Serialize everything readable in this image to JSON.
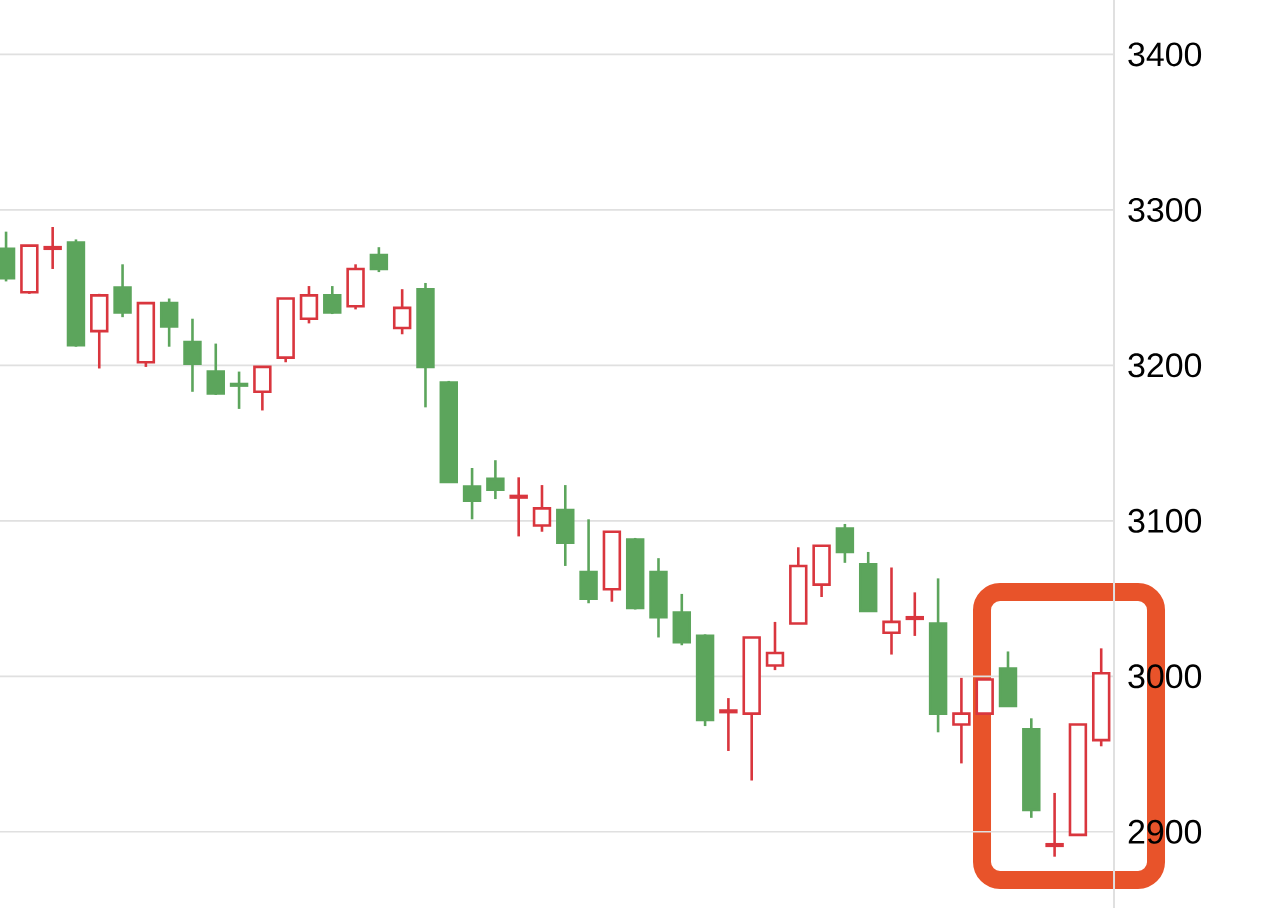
{
  "chart_data": {
    "type": "candlestick",
    "categories": [
      null,
      null,
      null,
      null,
      null,
      null,
      null,
      null,
      null,
      null,
      null,
      null,
      null,
      null,
      null,
      null,
      null,
      null,
      null,
      null,
      null,
      null,
      null,
      null,
      null,
      null,
      null,
      null,
      null,
      null,
      null,
      null,
      null,
      null,
      null,
      null,
      null,
      null,
      null,
      null,
      null,
      null,
      null,
      null,
      null,
      null,
      null,
      null
    ],
    "ohlc": [
      [
        3275,
        3286,
        3254,
        3256
      ],
      [
        3247,
        3277,
        3246,
        3277
      ],
      [
        3275,
        3289,
        3262,
        3276
      ],
      [
        3279,
        3281,
        3212,
        3213
      ],
      [
        3222,
        3246,
        3198,
        3245
      ],
      [
        3250,
        3265,
        3231,
        3234
      ],
      [
        3202,
        3240,
        3199,
        3240
      ],
      [
        3240,
        3243,
        3212,
        3225
      ],
      [
        3215,
        3230,
        3183,
        3201
      ],
      [
        3196,
        3214,
        3181,
        3182
      ],
      [
        3188,
        3196,
        3172,
        3187
      ],
      [
        3183,
        3199,
        3171,
        3199
      ],
      [
        3205,
        3243,
        3202,
        3243
      ],
      [
        3230,
        3251,
        3227,
        3245
      ],
      [
        3245,
        3251,
        3233,
        3234
      ],
      [
        3238,
        3265,
        3236,
        3262
      ],
      [
        3271,
        3276,
        3260,
        3262
      ],
      [
        3224,
        3249,
        3220,
        3237
      ],
      [
        3249,
        3253,
        3173,
        3199
      ],
      [
        3189,
        3190,
        3125,
        3125
      ],
      [
        3122,
        3134,
        3101,
        3113
      ],
      [
        3127,
        3139,
        3114,
        3120
      ],
      [
        3115,
        3128,
        3090,
        3116
      ],
      [
        3097,
        3123,
        3093,
        3108
      ],
      [
        3107,
        3123,
        3071,
        3086
      ],
      [
        3067,
        3101,
        3047,
        3050
      ],
      [
        3056,
        3093,
        3048,
        3093
      ],
      [
        3088,
        3089,
        3043,
        3044
      ],
      [
        3067,
        3076,
        3025,
        3038
      ],
      [
        3041,
        3053,
        3020,
        3022
      ],
      [
        3026,
        3027,
        2968,
        2972
      ],
      [
        2977,
        2986,
        2952,
        2978
      ],
      [
        2976,
        3025,
        2933,
        3025
      ],
      [
        3007,
        3035,
        3004,
        3015
      ],
      [
        3034,
        3083,
        3034,
        3071
      ],
      [
        3059,
        3084,
        3051,
        3084
      ],
      [
        3095,
        3098,
        3073,
        3080
      ],
      [
        3072,
        3080,
        3042,
        3042
      ],
      [
        3028,
        3070,
        3014,
        3035
      ],
      [
        3037,
        3054,
        3026,
        3038
      ],
      [
        3034,
        3063,
        2964,
        2976
      ],
      [
        2969,
        2999,
        2944,
        2976
      ],
      [
        2976,
        2998,
        2976,
        2998
      ],
      [
        3005,
        3016,
        2981,
        2981
      ],
      [
        2966,
        2973,
        2909,
        2914
      ],
      [
        2891,
        2925,
        2884,
        2892
      ],
      [
        2898,
        2969,
        2898,
        2969
      ],
      [
        2959,
        3018,
        2955,
        3002
      ]
    ],
    "colors": [
      "#5ca55c",
      "#d9363e",
      "#d9363e",
      "#5ca55c",
      "#d9363e",
      "#5ca55c",
      "#d9363e",
      "#5ca55c",
      "#5ca55c",
      "#5ca55c",
      "#5ca55c",
      "#d9363e",
      "#d9363e",
      "#d9363e",
      "#5ca55c",
      "#d9363e",
      "#5ca55c",
      "#d9363e",
      "#5ca55c",
      "#5ca55c",
      "#5ca55c",
      "#5ca55c",
      "#d9363e",
      "#d9363e",
      "#5ca55c",
      "#5ca55c",
      "#d9363e",
      "#5ca55c",
      "#5ca55c",
      "#5ca55c",
      "#5ca55c",
      "#d9363e",
      "#d9363e",
      "#d9363e",
      "#d9363e",
      "#d9363e",
      "#5ca55c",
      "#5ca55c",
      "#d9363e",
      "#d9363e",
      "#5ca55c",
      "#d9363e",
      "#d9363e",
      "#5ca55c",
      "#5ca55c",
      "#d9363e",
      "#d9363e",
      "#d9363e"
    ],
    "ylim": [
      2851,
      3435
    ],
    "yticks": [
      2900,
      3000,
      3100,
      3200,
      3300,
      3400
    ],
    "grid": "y",
    "tick_labels": "y"
  }
}
